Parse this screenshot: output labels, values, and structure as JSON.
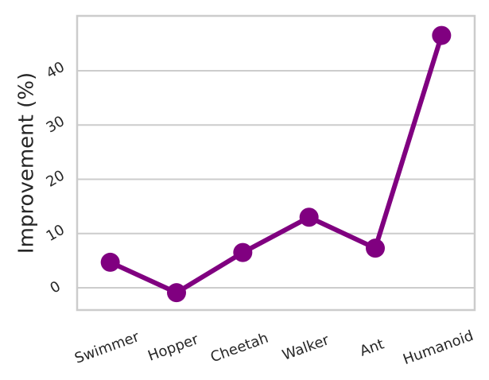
{
  "chart_data": {
    "type": "line",
    "y_label": "Improvement (%)",
    "categories": [
      "Swimmer",
      "Hopper",
      "Cheetah",
      "Walker",
      "Ant",
      "Humanoid"
    ],
    "values": [
      4.7,
      -0.9,
      6.5,
      13.0,
      7.3,
      46.5
    ],
    "color": "#800080",
    "ylim": [
      -4.1,
      50.1
    ],
    "yticks": [
      0,
      10,
      20,
      30,
      40
    ],
    "grid": true
  }
}
